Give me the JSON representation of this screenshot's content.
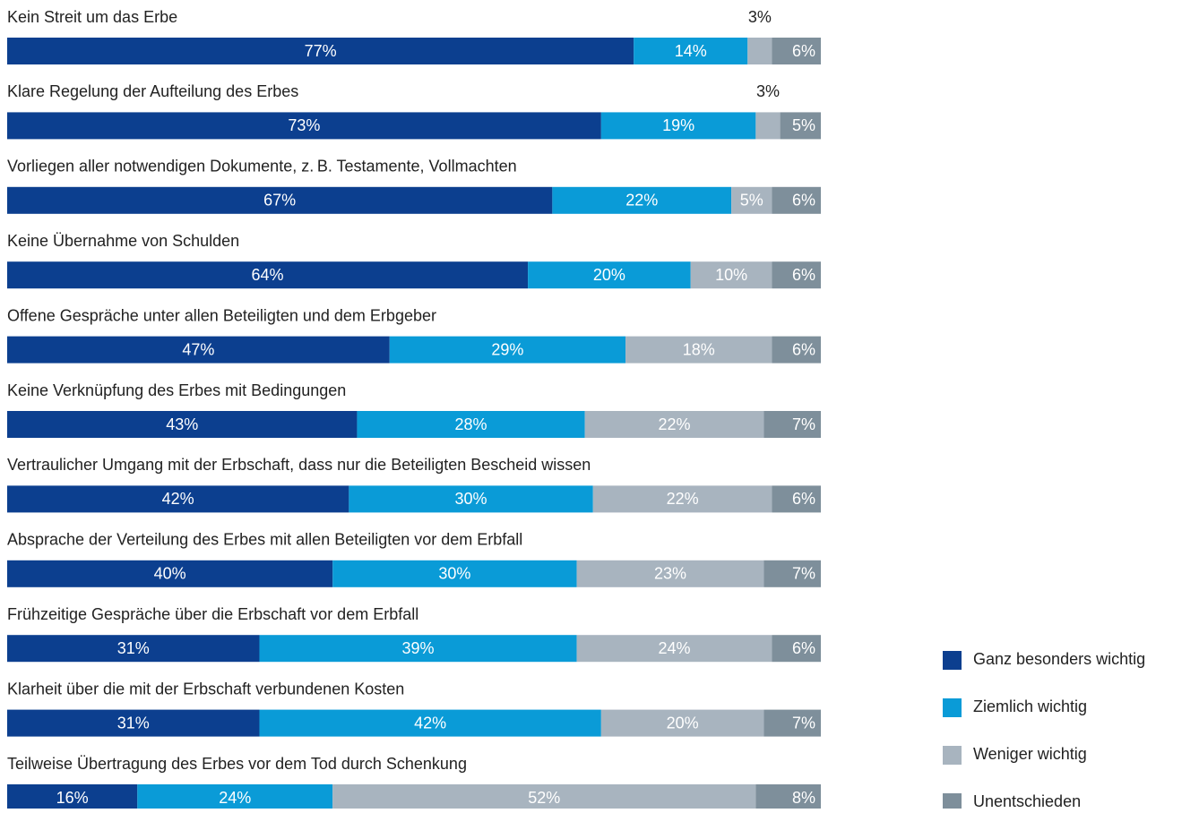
{
  "chart_data": {
    "type": "stacked-bar-horizontal",
    "categories": [
      "Kein Streit um das Erbe",
      "Klare Regelung der Aufteilung des Erbes",
      "Vorliegen aller notwendigen Dokumente, z. B. Testamente, Vollmachten",
      "Keine Übernahme von Schulden",
      "Offene Gespräche unter allen Beteiligten und dem Erbgeber",
      "Keine Verknüpfung des Erbes mit Bedingungen",
      "Vertraulicher Umgang mit der Erbschaft, dass nur die Beteiligten Bescheid wissen",
      "Absprache der Verteilung des Erbes mit allen Beteiligten vor dem Erbfall",
      "Frühzeitige Gespräche über die Erbschaft vor dem Erbfall",
      "Klarheit über die mit der Erbschaft verbundenen Kosten",
      "Teilweise Übertragung des Erbes vor dem Tod durch Schenkung"
    ],
    "series": [
      {
        "name": "Ganz besonders wichtig",
        "color": "#0c3f8f",
        "values": [
          77,
          73,
          67,
          64,
          47,
          43,
          42,
          40,
          31,
          31,
          16
        ],
        "value_labels": [
          "77%",
          "73%",
          "67%",
          "64%",
          "47%",
          "43%",
          "42%",
          "40%",
          "31%",
          "31%",
          "16%"
        ]
      },
      {
        "name": "Ziemlich wichtig",
        "color": "#0a9bd7",
        "values": [
          14,
          19,
          22,
          20,
          29,
          28,
          30,
          30,
          39,
          42,
          24
        ],
        "value_labels": [
          "14%",
          "19%",
          "22%",
          "20%",
          "29%",
          "28%",
          "30%",
          "30%",
          "39%",
          "42%",
          "24%"
        ]
      },
      {
        "name": "Weniger wichtig",
        "color": "#a8b4bf",
        "values": [
          3,
          3,
          5,
          10,
          18,
          22,
          22,
          23,
          24,
          20,
          52
        ],
        "value_labels": [
          "3%",
          "3%",
          "5%",
          "10%",
          "18%",
          "22%",
          "22%",
          "23%",
          "24%",
          "20%",
          "52%"
        ]
      },
      {
        "name": "Unentschieden",
        "color": "#7e8f9b",
        "values": [
          6,
          5,
          6,
          6,
          6,
          7,
          6,
          7,
          6,
          7,
          8
        ],
        "value_labels": [
          "6%",
          "5%",
          "6%",
          "6%",
          "6%",
          "7%",
          "6%",
          "7%",
          "6%",
          "7%",
          "8%"
        ]
      }
    ]
  }
}
